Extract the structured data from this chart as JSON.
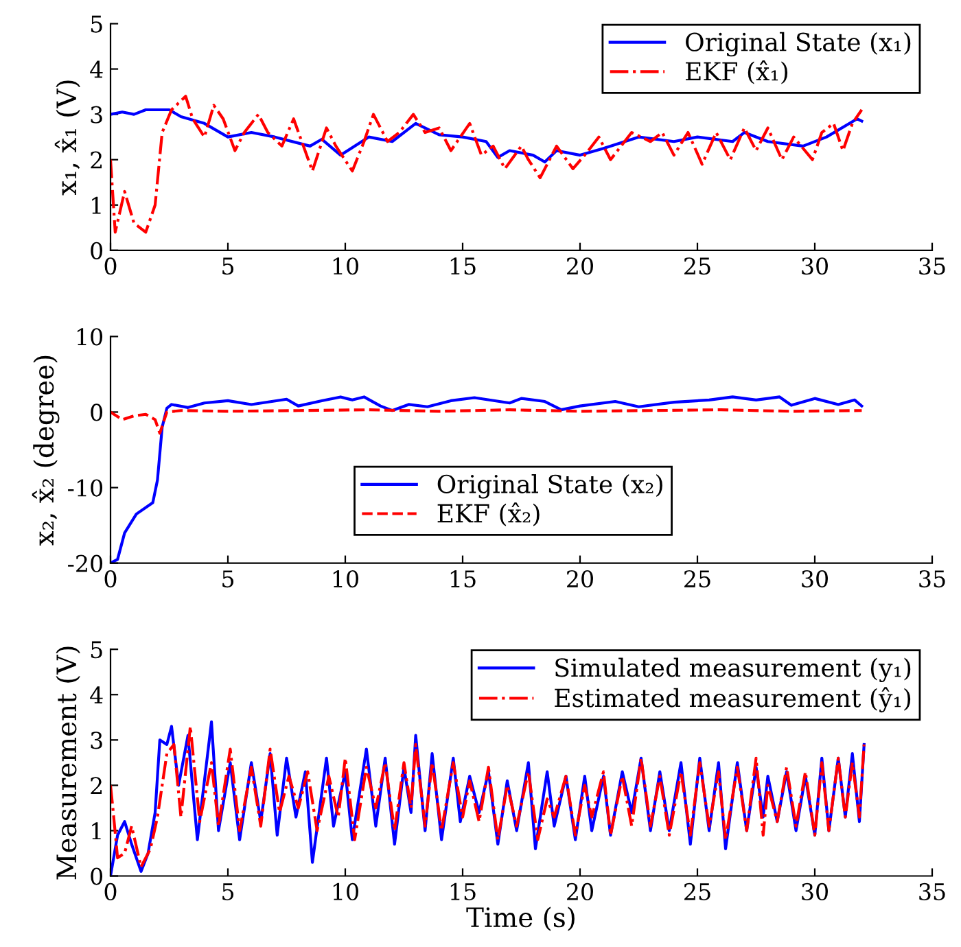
{
  "chart_data": [
    {
      "type": "line",
      "ylabel": "x₁, x̂₁ (V)",
      "xlim": [
        0,
        35
      ],
      "xticks": [
        0,
        5,
        10,
        15,
        20,
        25,
        30,
        35
      ],
      "ylim": [
        0,
        5
      ],
      "yticks": [
        0,
        1,
        2,
        3,
        4,
        5
      ],
      "grid": false,
      "legend": "top right",
      "series": [
        {
          "name": "Original State (x₁)",
          "color": "#0000ff",
          "line_style": "solid",
          "x": [
            0,
            0.5,
            1.0,
            1.5,
            2.0,
            2.5,
            3.0,
            4.0,
            5.0,
            6.0,
            7.0,
            8.5,
            9.0,
            9.8,
            11.0,
            12.0,
            13.0,
            14.0,
            15.0,
            16.0,
            16.5,
            17.0,
            18.0,
            18.5,
            19.0,
            20.0,
            21.0,
            22.5,
            24.0,
            25.0,
            26.5,
            27.0,
            28.0,
            29.5,
            30.5,
            31.8,
            32.0
          ],
          "values": [
            3.0,
            3.05,
            3.0,
            3.1,
            3.1,
            3.1,
            2.95,
            2.8,
            2.5,
            2.6,
            2.5,
            2.3,
            2.45,
            2.1,
            2.5,
            2.4,
            2.8,
            2.55,
            2.5,
            2.4,
            2.05,
            2.2,
            2.1,
            1.95,
            2.2,
            2.1,
            2.25,
            2.5,
            2.4,
            2.5,
            2.4,
            2.6,
            2.4,
            2.3,
            2.5,
            2.9,
            2.85
          ]
        },
        {
          "name": "EKF (x̂₁)",
          "color": "#ff0000",
          "line_style": "dashdot",
          "x": [
            0,
            0.2,
            0.6,
            1.0,
            1.5,
            1.9,
            2.2,
            2.6,
            3.2,
            3.5,
            4.0,
            4.4,
            4.8,
            5.3,
            5.7,
            6.3,
            6.7,
            7.3,
            7.8,
            8.6,
            9.2,
            9.6,
            10.3,
            10.8,
            11.2,
            11.8,
            12.3,
            12.9,
            13.4,
            14.0,
            14.5,
            15.3,
            15.8,
            16.3,
            16.8,
            17.5,
            17.8,
            18.3,
            19.0,
            19.7,
            20.2,
            20.8,
            21.3,
            22.2,
            23.0,
            23.5,
            24.0,
            24.6,
            25.2,
            25.8,
            26.4,
            27.0,
            27.5,
            28.0,
            28.6,
            29.1,
            29.9,
            30.3,
            30.8,
            31.2,
            31.6,
            32.0
          ],
          "values": [
            2.0,
            0.4,
            1.3,
            0.6,
            0.4,
            1.0,
            2.6,
            3.1,
            3.4,
            2.9,
            2.5,
            3.2,
            2.9,
            2.2,
            2.6,
            3.0,
            2.6,
            2.3,
            2.9,
            1.75,
            2.7,
            2.3,
            1.75,
            2.4,
            3.0,
            2.4,
            2.6,
            3.0,
            2.6,
            2.7,
            2.2,
            2.8,
            2.1,
            2.3,
            1.8,
            2.3,
            2.0,
            1.6,
            2.3,
            1.8,
            2.1,
            2.5,
            2.0,
            2.6,
            2.4,
            2.6,
            2.1,
            2.6,
            1.9,
            2.6,
            2.0,
            2.7,
            2.2,
            2.7,
            2.0,
            2.5,
            2.0,
            2.6,
            2.8,
            2.2,
            2.8,
            3.1
          ]
        }
      ]
    },
    {
      "type": "line",
      "ylabel": "x₂, x̂₂ (degree)",
      "xlim": [
        0,
        35
      ],
      "xticks": [
        0,
        5,
        10,
        15,
        20,
        25,
        30,
        35
      ],
      "ylim": [
        -20,
        10
      ],
      "yticks": [
        -20,
        -10,
        0,
        10
      ],
      "grid": false,
      "legend": "bottom",
      "series": [
        {
          "name": "Original State (x₂)",
          "color": "#0000ff",
          "line_style": "solid",
          "x": [
            0,
            0.3,
            0.6,
            1.1,
            1.8,
            2.0,
            2.2,
            2.4,
            2.6,
            3.3,
            4.0,
            5.0,
            6.0,
            7.5,
            8.0,
            9.0,
            9.8,
            10.3,
            10.8,
            11.5,
            12.0,
            12.7,
            13.5,
            14.5,
            15.5,
            17.0,
            17.5,
            18.5,
            19.2,
            20.0,
            21.5,
            22.5,
            24.0,
            25.5,
            26.5,
            27.5,
            28.5,
            29.0,
            30.0,
            31.0,
            31.7,
            32.0
          ],
          "values": [
            -20,
            -19.5,
            -16,
            -13.5,
            -12,
            -9,
            -2,
            0.5,
            1,
            0.6,
            1.2,
            1.5,
            1.0,
            1.7,
            0.8,
            1.5,
            2.0,
            1.6,
            2.0,
            0.8,
            0.2,
            1.0,
            0.7,
            1.5,
            1.9,
            1.2,
            1.8,
            1.4,
            0.3,
            0.8,
            1.4,
            0.7,
            1.3,
            1.6,
            2.0,
            1.6,
            2.0,
            0.9,
            1.8,
            1.0,
            1.6,
            0.8
          ]
        },
        {
          "name": "EKF (x̂₂)",
          "color": "#ff0000",
          "line_style": "dashed",
          "x": [
            0,
            0.5,
            1.0,
            1.5,
            1.9,
            2.1,
            2.4,
            3.0,
            5.0,
            8.0,
            11.0,
            14.0,
            17.0,
            20.0,
            23.0,
            26.0,
            29.0,
            32.0
          ],
          "values": [
            0,
            -1,
            -0.5,
            -0.3,
            -1.0,
            -2.8,
            0,
            0.2,
            0.1,
            0.2,
            0.3,
            0.1,
            0.3,
            0.1,
            0.2,
            0.3,
            0.1,
            0.2
          ]
        }
      ]
    },
    {
      "type": "line",
      "xlabel": "Time (s)",
      "ylabel": "Measurement (V)",
      "xlim": [
        0,
        35
      ],
      "xticks": [
        0,
        5,
        10,
        15,
        20,
        25,
        30,
        35
      ],
      "ylim": [
        0,
        5
      ],
      "yticks": [
        0,
        1,
        2,
        3,
        4,
        5
      ],
      "grid": false,
      "legend": "top right",
      "series": [
        {
          "name": "Simulated measurement (y₁)",
          "color": "#0000ff",
          "line_style": "solid",
          "x": [
            0,
            0.3,
            0.6,
            0.9,
            1.3,
            1.6,
            1.9,
            2.1,
            2.4,
            2.6,
            2.9,
            3.3,
            3.7,
            4.3,
            4.6,
            5.1,
            5.5,
            6.0,
            6.4,
            6.8,
            7.1,
            7.5,
            7.9,
            8.3,
            8.6,
            9.2,
            9.5,
            10.0,
            10.3,
            10.9,
            11.3,
            11.7,
            12.1,
            12.5,
            12.8,
            13.0,
            13.4,
            13.7,
            14.1,
            14.6,
            14.9,
            15.3,
            15.7,
            16.1,
            16.5,
            16.9,
            17.3,
            17.8,
            18.1,
            18.6,
            18.9,
            19.4,
            19.8,
            20.2,
            20.5,
            21.0,
            21.3,
            21.8,
            22.2,
            22.6,
            23.0,
            23.4,
            23.8,
            24.3,
            24.7,
            25.1,
            25.5,
            25.9,
            26.2,
            26.7,
            27.1,
            27.5,
            27.8,
            28.0,
            28.4,
            28.8,
            29.2,
            29.6,
            30.0,
            30.3,
            30.6,
            31.0,
            31.3,
            31.6,
            31.9,
            32.1
          ],
          "values": [
            0.0,
            0.9,
            1.2,
            0.7,
            0.1,
            0.5,
            1.4,
            3.0,
            2.9,
            3.3,
            2.0,
            3.1,
            0.8,
            3.4,
            1.0,
            2.5,
            0.8,
            2.5,
            1.2,
            2.7,
            0.9,
            2.6,
            1.3,
            2.3,
            0.3,
            2.6,
            1.1,
            2.3,
            0.8,
            2.8,
            1.1,
            2.6,
            0.7,
            2.4,
            1.4,
            3.1,
            1.0,
            2.7,
            0.8,
            2.6,
            1.2,
            2.2,
            1.4,
            2.3,
            0.7,
            2.1,
            1.0,
            2.5,
            0.6,
            2.3,
            1.1,
            2.2,
            0.8,
            2.2,
            1.0,
            2.2,
            0.9,
            2.3,
            1.4,
            2.6,
            1.0,
            2.3,
            1.0,
            2.5,
            0.7,
            2.6,
            1.0,
            2.5,
            0.6,
            2.5,
            1.0,
            2.4,
            1.3,
            2.2,
            1.2,
            2.3,
            1.0,
            2.2,
            0.9,
            2.6,
            1.0,
            2.6,
            1.3,
            2.7,
            1.2,
            2.9
          ]
        },
        {
          "name": "Estimated measurement (ŷ₁)",
          "color": "#ff0000",
          "line_style": "dashdot",
          "x": [
            0,
            0.1,
            0.3,
            0.6,
            0.9,
            1.3,
            1.7,
            2.0,
            2.4,
            2.7,
            3.0,
            3.4,
            3.8,
            4.3,
            4.6,
            5.1,
            5.5,
            6.0,
            6.4,
            6.8,
            7.2,
            7.6,
            8.0,
            8.4,
            8.8,
            9.3,
            9.7,
            10.0,
            10.4,
            10.9,
            11.3,
            11.7,
            12.1,
            12.5,
            12.8,
            13.0,
            13.4,
            13.7,
            14.1,
            14.6,
            15.0,
            15.3,
            15.7,
            16.1,
            16.5,
            16.9,
            17.3,
            17.8,
            18.2,
            18.6,
            18.9,
            19.4,
            19.8,
            20.2,
            20.5,
            21.0,
            21.3,
            21.8,
            22.2,
            22.6,
            23.0,
            23.4,
            23.8,
            24.3,
            24.7,
            25.1,
            25.5,
            25.9,
            26.2,
            26.7,
            27.1,
            27.5,
            27.8,
            28.0,
            28.4,
            28.8,
            29.2,
            29.6,
            30.0,
            30.3,
            30.6,
            31.0,
            31.3,
            31.6,
            31.9,
            32.1
          ],
          "values": [
            2.0,
            1.5,
            0.4,
            0.5,
            1.1,
            0.2,
            0.6,
            1.3,
            2.7,
            2.9,
            1.3,
            3.3,
            1.2,
            2.5,
            1.1,
            2.8,
            1.0,
            2.4,
            1.1,
            2.8,
            1.4,
            2.2,
            1.5,
            2.3,
            1.0,
            2.2,
            1.3,
            2.6,
            0.8,
            2.4,
            1.5,
            2.5,
            1.0,
            2.5,
            1.5,
            2.9,
            1.1,
            2.5,
            1.0,
            2.5,
            1.3,
            2.1,
            1.2,
            2.4,
            0.8,
            2.0,
            1.1,
            2.3,
            0.8,
            1.7,
            1.3,
            2.2,
            0.9,
            2.0,
            1.3,
            2.3,
            0.9,
            2.2,
            1.1,
            2.6,
            1.1,
            2.2,
            0.9,
            2.3,
            0.9,
            2.5,
            1.1,
            2.3,
            0.8,
            2.4,
            1.0,
            2.6,
            0.9,
            2.0,
            1.2,
            2.4,
            1.1,
            2.3,
            0.9,
            2.5,
            1.0,
            2.6,
            1.3,
            2.5,
            1.3,
            2.9
          ]
        }
      ]
    }
  ]
}
